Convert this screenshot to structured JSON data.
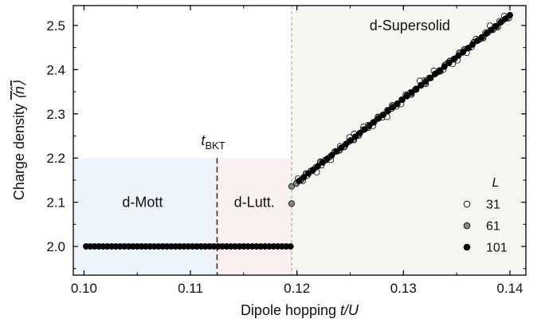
{
  "chart_data": {
    "type": "scatter",
    "title": "",
    "xlabel_text": "Dipole hopping ",
    "xlabel_var": "t/U",
    "ylabel_text": "Charge density ",
    "ylabel_sym": "⟨n̂⟩",
    "xlim": [
      0.099,
      0.1415
    ],
    "ylim": [
      1.935,
      2.545
    ],
    "xticks": [
      0.1,
      0.11,
      0.12,
      0.13,
      0.14
    ],
    "xtick_labels": [
      "0.10",
      "0.11",
      "0.12",
      "0.13",
      "0.14"
    ],
    "yticks": [
      2.0,
      2.1,
      2.2,
      2.3,
      2.4,
      2.5
    ],
    "ytick_labels": [
      "2.0",
      "2.1",
      "2.2",
      "2.3",
      "2.4",
      "2.5"
    ],
    "grid": false,
    "regions": [
      {
        "label": "d-Mott",
        "x0": 0.099,
        "x1": 0.1125,
        "ymax": 2.2,
        "color": "#eef4fb",
        "label_x": 0.1055,
        "label_y": 2.1
      },
      {
        "label": "d-Lutt.",
        "x0": 0.1125,
        "x1": 0.1195,
        "ymax": 2.2,
        "color": "#fbf1f1",
        "label_x": 0.116,
        "label_y": 2.1
      },
      {
        "label": "d-Supersolid",
        "x0": 0.1195,
        "x1": 0.1415,
        "ymax": 2.545,
        "color": "#f5f7f3",
        "label_x": 0.1306,
        "label_y": 2.5
      }
    ],
    "bkt": {
      "x": 0.1125,
      "label_main": "t",
      "label_sub": "BKT",
      "y_top": 2.2
    },
    "transition_x": 0.1195,
    "legend": {
      "title": "L",
      "position": "bottom-right",
      "entries": [
        {
          "label": "31",
          "face": "#ffffff"
        },
        {
          "label": "61",
          "face": "#888888"
        },
        {
          "label": "101",
          "face": "#000000"
        }
      ]
    },
    "series": [
      {
        "name": "31",
        "face": "#ffffff",
        "x_start": 0.1201,
        "x_end": 0.14,
        "x_step": 0.00044,
        "slope": 18.95,
        "intercept": -0.1296,
        "noise": 0.012
      },
      {
        "name": "61",
        "face": "#888888",
        "x_start": 0.1195,
        "x_end": 0.14,
        "x_step": 0.00045,
        "slope": 18.95,
        "intercept": -0.1296,
        "noise": 0.006,
        "extra_points": [
          [
            0.1195,
            2.097
          ]
        ]
      },
      {
        "name": "101",
        "face": "#000000",
        "x_start": 0.1002,
        "x_end": 0.1195,
        "x_step": 0.0004,
        "slope": 0,
        "intercept": 2.0,
        "noise": 0,
        "second_segment": {
          "x_start": 0.1202,
          "x_end": 0.14,
          "x_step": 0.00044,
          "slope": 18.95,
          "intercept": -0.1296
        }
      }
    ]
  }
}
